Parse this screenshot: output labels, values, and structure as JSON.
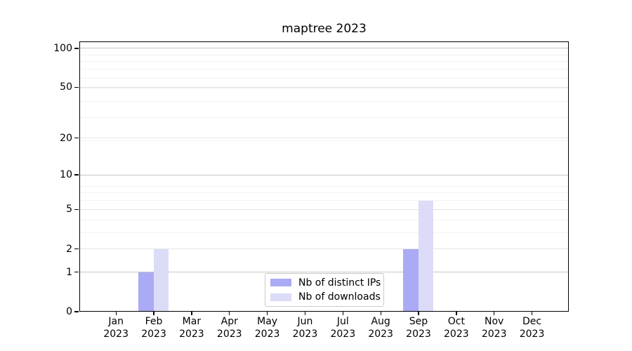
{
  "title": "maptree 2023",
  "chart_data": {
    "type": "bar",
    "title": "maptree 2023",
    "months": [
      "Jan",
      "Feb",
      "Mar",
      "Apr",
      "May",
      "Jun",
      "Jul",
      "Aug",
      "Sep",
      "Oct",
      "Nov",
      "Dec"
    ],
    "year_label": "2023",
    "series": [
      {
        "name": "Nb of distinct IPs",
        "color": "#aaaaf5",
        "values": [
          0,
          1,
          0,
          0,
          0,
          0,
          0,
          0,
          2,
          0,
          0,
          0
        ]
      },
      {
        "name": "Nb of downloads",
        "color": "#dcdcf8",
        "values": [
          0,
          2,
          0,
          0,
          0,
          0,
          0,
          0,
          6,
          0,
          0,
          0
        ]
      }
    ],
    "y_scale": "log10(value+1)",
    "y_major_ticks": [
      0,
      1,
      2,
      5,
      10,
      20,
      50,
      100
    ],
    "y_decade_ticks": [
      1,
      10,
      100
    ],
    "y_minor_gridlines": [
      3,
      4,
      6,
      7,
      8,
      19,
      29,
      39,
      49,
      59,
      69,
      79,
      89
    ],
    "ylim": [
      0,
      113
    ],
    "grid": true,
    "legend_position": "bottom-center"
  },
  "colors": {
    "decade_grid": "#c6c6c6",
    "major_grid": "#e4e4e4",
    "minor_grid": "#f2f2f2",
    "spine": "#000000"
  }
}
